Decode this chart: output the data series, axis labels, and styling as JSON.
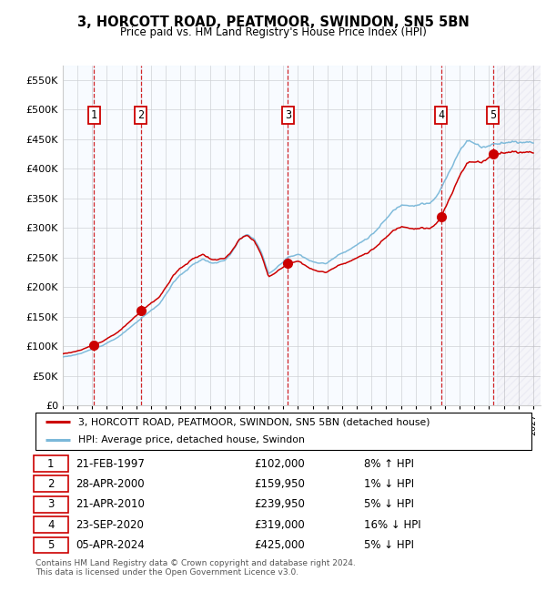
{
  "title": "3, HORCOTT ROAD, PEATMOOR, SWINDON, SN5 5BN",
  "subtitle": "Price paid vs. HM Land Registry's House Price Index (HPI)",
  "ylim": [
    0,
    575000
  ],
  "yticks": [
    0,
    50000,
    100000,
    150000,
    200000,
    250000,
    300000,
    350000,
    400000,
    450000,
    500000,
    550000
  ],
  "ytick_labels": [
    "£0",
    "£50K",
    "£100K",
    "£150K",
    "£200K",
    "£250K",
    "£300K",
    "£350K",
    "£400K",
    "£450K",
    "£500K",
    "£550K"
  ],
  "xlim_start": 1995.0,
  "xlim_end": 2027.5,
  "sale_dates": [
    1997.13,
    2000.32,
    2010.31,
    2020.73,
    2024.26
  ],
  "sale_prices": [
    102000,
    159950,
    239950,
    319000,
    425000
  ],
  "sale_labels": [
    "1",
    "2",
    "3",
    "4",
    "5"
  ],
  "legend_line1": "3, HORCOTT ROAD, PEATMOOR, SWINDON, SN5 5BN (detached house)",
  "legend_line2": "HPI: Average price, detached house, Swindon",
  "table_rows": [
    [
      "1",
      "21-FEB-1997",
      "£102,000",
      "8% ↑ HPI"
    ],
    [
      "2",
      "28-APR-2000",
      "£159,950",
      "1% ↓ HPI"
    ],
    [
      "3",
      "21-APR-2010",
      "£239,950",
      "5% ↓ HPI"
    ],
    [
      "4",
      "23-SEP-2020",
      "£319,000",
      "16% ↓ HPI"
    ],
    [
      "5",
      "05-APR-2024",
      "£425,000",
      "5% ↓ HPI"
    ]
  ],
  "footnote": "Contains HM Land Registry data © Crown copyright and database right 2024.\nThis data is licensed under the Open Government Licence v3.0.",
  "hpi_color": "#7ab8d9",
  "price_color": "#cc0000",
  "vline_color": "#cc0000",
  "shade_color": "#ddeeff",
  "background_color": "#ffffff",
  "grid_color": "#cccccc"
}
